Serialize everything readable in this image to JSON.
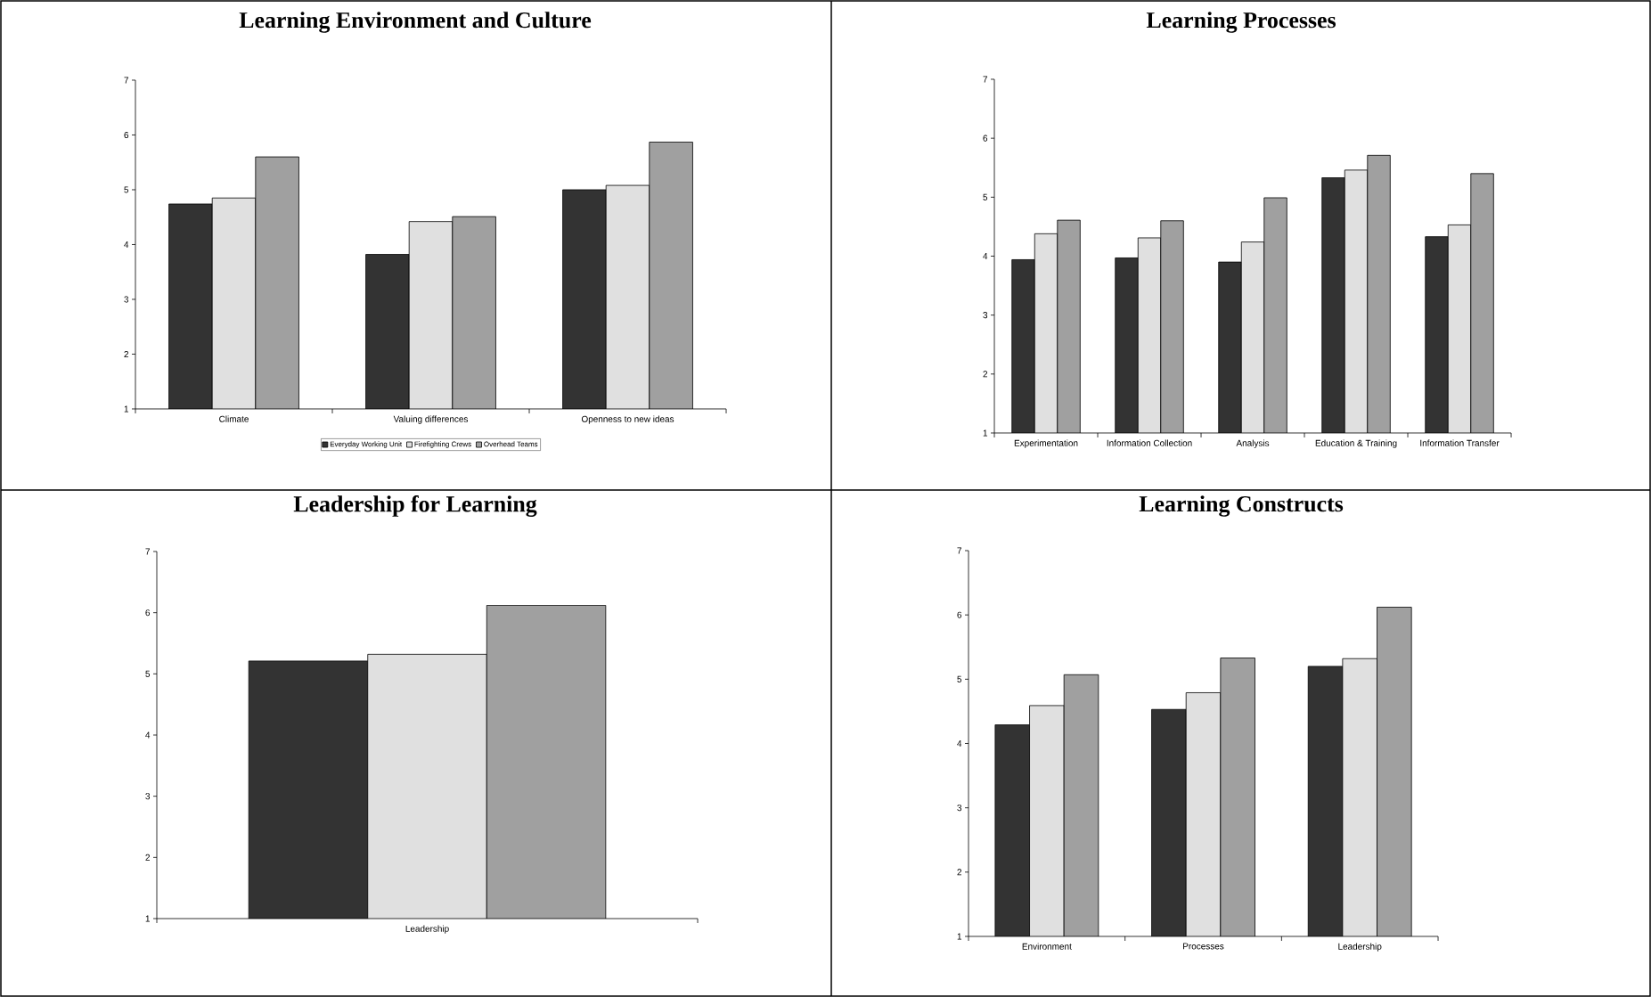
{
  "chart_data": [
    {
      "type": "bar",
      "title": "Learning Environment and Culture",
      "categories": [
        "Climate",
        "Valuing differences",
        "Openness to new ideas"
      ],
      "ylim": [
        1,
        7
      ],
      "yticks": [
        1,
        2,
        3,
        4,
        5,
        6,
        7
      ],
      "legend": "bottom",
      "series": [
        {
          "name": "Everyday Working Unit",
          "color": "#333333",
          "values": [
            4.74,
            3.82,
            5.0
          ]
        },
        {
          "name": "Firefighting Crews",
          "color": "#e0e0e0",
          "values": [
            4.85,
            4.42,
            5.08
          ]
        },
        {
          "name": "Overhead Teams",
          "color": "#a0a0a0",
          "values": [
            5.6,
            4.51,
            5.87
          ]
        }
      ]
    },
    {
      "type": "bar",
      "title": "Learning Processes",
      "categories": [
        "Experimentation",
        "Information Collection",
        "Analysis",
        "Education & Training",
        "Information Transfer"
      ],
      "ylim": [
        1,
        7
      ],
      "yticks": [
        1,
        2,
        3,
        4,
        5,
        6,
        7
      ],
      "series": [
        {
          "color": "#333333",
          "values": [
            3.94,
            3.97,
            3.9,
            5.33,
            4.33
          ]
        },
        {
          "color": "#e0e0e0",
          "values": [
            4.38,
            4.31,
            4.24,
            5.46,
            4.53
          ]
        },
        {
          "color": "#a0a0a0",
          "values": [
            4.61,
            4.6,
            4.99,
            5.71,
            5.4
          ]
        }
      ]
    },
    {
      "type": "bar",
      "title": "Leadership for Learning",
      "categories": [
        "Leadership"
      ],
      "ylim": [
        1,
        7
      ],
      "yticks": [
        1,
        2,
        3,
        4,
        5,
        6,
        7
      ],
      "series": [
        {
          "color": "#333333",
          "values": [
            5.21
          ]
        },
        {
          "color": "#e0e0e0",
          "values": [
            5.32
          ]
        },
        {
          "color": "#a0a0a0",
          "values": [
            6.12
          ]
        }
      ]
    },
    {
      "type": "bar",
      "title": "Learning Constructs",
      "categories": [
        "Environment",
        "Processes",
        "Leadership"
      ],
      "ylim": [
        1,
        7
      ],
      "yticks": [
        1,
        2,
        3,
        4,
        5,
        6,
        7
      ],
      "series": [
        {
          "color": "#333333",
          "values": [
            4.29,
            4.53,
            5.2
          ]
        },
        {
          "color": "#e0e0e0",
          "values": [
            4.59,
            4.79,
            5.32
          ]
        },
        {
          "color": "#a0a0a0",
          "values": [
            5.07,
            5.33,
            6.12
          ]
        }
      ]
    }
  ]
}
